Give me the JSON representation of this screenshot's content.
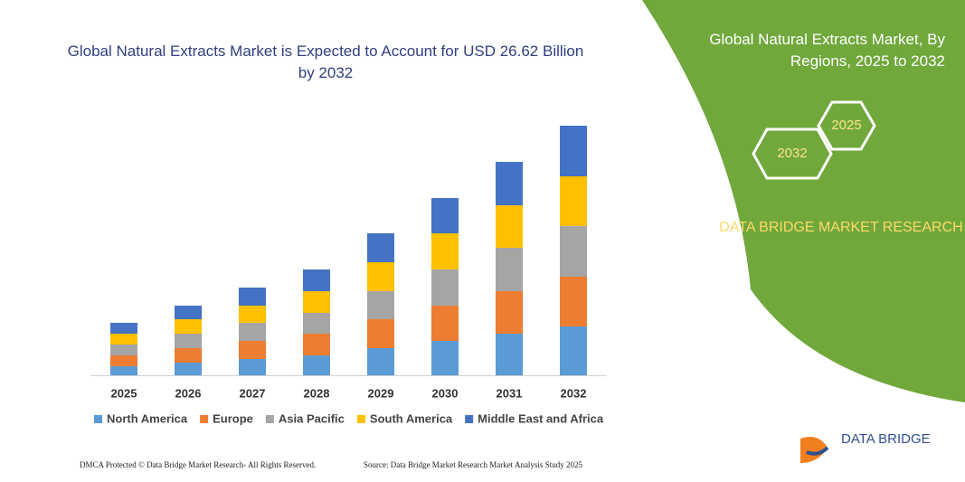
{
  "chart_data": {
    "type": "bar",
    "stacked": true,
    "title": "Global Natural Extracts Market is Expected to Account for USD 26.62 Billion by 2032",
    "categories": [
      "2025",
      "2026",
      "2027",
      "2028",
      "2029",
      "2030",
      "2031",
      "2032"
    ],
    "series": [
      {
        "name": "North America",
        "color": "#5b9bd5",
        "values": [
          10,
          14,
          18,
          22,
          30,
          38,
          46,
          54
        ]
      },
      {
        "name": "Europe",
        "color": "#ed7d31",
        "values": [
          12,
          16,
          20,
          24,
          32,
          39,
          47,
          55
        ]
      },
      {
        "name": "Asia Pacific",
        "color": "#a5a5a5",
        "values": [
          12,
          16,
          20,
          23,
          31,
          40,
          48,
          56
        ]
      },
      {
        "name": "South America",
        "color": "#ffc000",
        "values": [
          12,
          16,
          19,
          24,
          32,
          40,
          47,
          55
        ]
      },
      {
        "name": "Middle East and Africa",
        "color": "#4472c4",
        "values": [
          12,
          15,
          20,
          24,
          32,
          39,
          48,
          56
        ]
      }
    ],
    "ylim": [
      0,
      300
    ],
    "legend": "bottom"
  },
  "panel": {
    "title": "Global Natural Extracts Market, By Regions, 2025 to 2032",
    "hex_start": "2025",
    "hex_end": "2032",
    "brand": "DATA BRIDGE MARKET RESEARCH",
    "logo": "DATA BRIDGE"
  },
  "footer": {
    "left": "DMCA Protected © Data Bridge Market Research- All Rights Reserved.",
    "right": "Source: Data Bridge Market Research Market Analysis Study 2025"
  }
}
